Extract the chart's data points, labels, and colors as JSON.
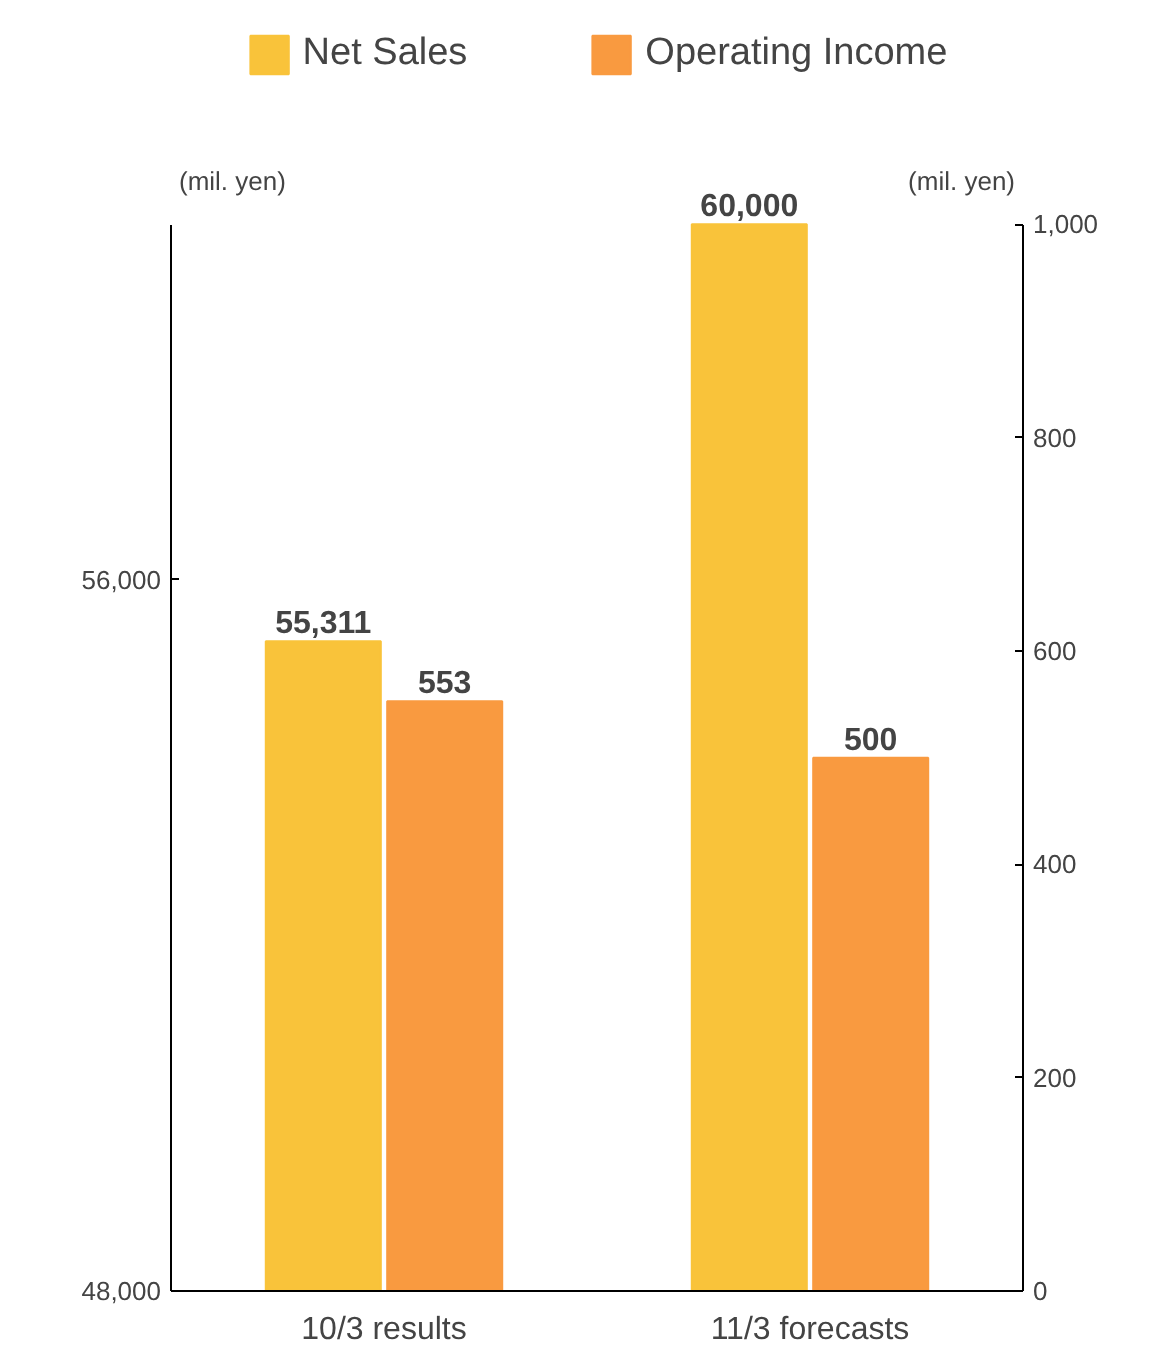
{
  "chart_data": {
    "type": "bar",
    "categories": [
      "10/3 results",
      "11/3 forecasts"
    ],
    "ylabel": "(mil. yen)",
    "y2label": "(mil. yen)",
    "ylim": [
      48000,
      60000
    ],
    "yticks": [
      {
        "value": 48000,
        "label": "48,000"
      },
      {
        "value": 56000,
        "label": "56,000"
      }
    ],
    "y2lim": [
      0,
      1000
    ],
    "y2ticks": [
      0,
      200,
      400,
      600,
      800,
      {
        "value": 1000,
        "label": "1,000"
      }
    ],
    "series": [
      {
        "name": "Net Sales",
        "color": "#f9c33a",
        "values": [
          55311,
          60000
        ],
        "value_labels": [
          "55,311",
          "60,000"
        ]
      },
      {
        "name": "Operating Income",
        "color": "#f99a40",
        "values": [
          553,
          500
        ],
        "value_labels": [
          "553",
          "500"
        ],
        "axis": "y2"
      }
    ],
    "legend": "top",
    "grid": false
  }
}
